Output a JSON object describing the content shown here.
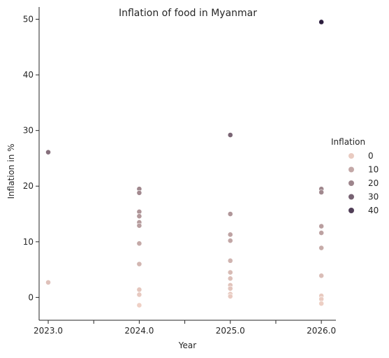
{
  "chart_data": {
    "type": "scatter",
    "title": "Inflation of food in Myanmar",
    "xlabel": "Year",
    "ylabel": "Inflation in %",
    "xlim": [
      2022.9,
      2026.16
    ],
    "ylim": [
      -4.1,
      52.2
    ],
    "xticks": [
      2023.0,
      2023.5,
      2024.0,
      2024.5,
      2025.0,
      2025.5,
      2026.0
    ],
    "xtick_labels": [
      "2023.0",
      "",
      "2024.0",
      "",
      "2025.0",
      "",
      "2026.0"
    ],
    "yticks": [
      0,
      10,
      20,
      30,
      40,
      50
    ],
    "ytick_labels": [
      "0",
      "10",
      "20",
      "30",
      "40",
      "50"
    ],
    "grid": false,
    "hue": {
      "name": "Inflation",
      "min": -1.5,
      "max": 49.5,
      "color_low": "#efd0c5",
      "color_high": "#2d1e3e"
    },
    "legend": {
      "title": "Inflation",
      "placement": "right",
      "entries": [
        {
          "label": "0",
          "value": 0
        },
        {
          "label": "10",
          "value": 10
        },
        {
          "label": "20",
          "value": 20
        },
        {
          "label": "30",
          "value": 30
        },
        {
          "label": "40",
          "value": 40
        }
      ]
    },
    "points": [
      {
        "x": 2023.0,
        "y": 26.1
      },
      {
        "x": 2023.0,
        "y": 2.7
      },
      {
        "x": 2024.0,
        "y": 19.5
      },
      {
        "x": 2024.0,
        "y": 18.8
      },
      {
        "x": 2024.0,
        "y": 15.4
      },
      {
        "x": 2024.0,
        "y": 14.6
      },
      {
        "x": 2024.0,
        "y": 13.5
      },
      {
        "x": 2024.0,
        "y": 12.9
      },
      {
        "x": 2024.0,
        "y": 9.7
      },
      {
        "x": 2024.0,
        "y": 6.0
      },
      {
        "x": 2024.0,
        "y": 1.4
      },
      {
        "x": 2024.0,
        "y": 0.5
      },
      {
        "x": 2024.0,
        "y": -1.4
      },
      {
        "x": 2025.0,
        "y": 29.2
      },
      {
        "x": 2025.0,
        "y": 15.0
      },
      {
        "x": 2025.0,
        "y": 11.3
      },
      {
        "x": 2025.0,
        "y": 10.2
      },
      {
        "x": 2025.0,
        "y": 6.6
      },
      {
        "x": 2025.0,
        "y": 4.5
      },
      {
        "x": 2025.0,
        "y": 3.4
      },
      {
        "x": 2025.0,
        "y": 2.2
      },
      {
        "x": 2025.0,
        "y": 1.6
      },
      {
        "x": 2025.0,
        "y": 0.6
      },
      {
        "x": 2025.0,
        "y": 0.2
      },
      {
        "x": 2026.0,
        "y": 49.5
      },
      {
        "x": 2026.0,
        "y": 19.5
      },
      {
        "x": 2026.0,
        "y": 18.9
      },
      {
        "x": 2026.0,
        "y": 12.8
      },
      {
        "x": 2026.0,
        "y": 11.6
      },
      {
        "x": 2026.0,
        "y": 8.9
      },
      {
        "x": 2026.0,
        "y": 3.9
      },
      {
        "x": 2026.0,
        "y": 0.3
      },
      {
        "x": 2026.0,
        "y": -0.3
      },
      {
        "x": 2026.0,
        "y": -1.1
      }
    ]
  }
}
